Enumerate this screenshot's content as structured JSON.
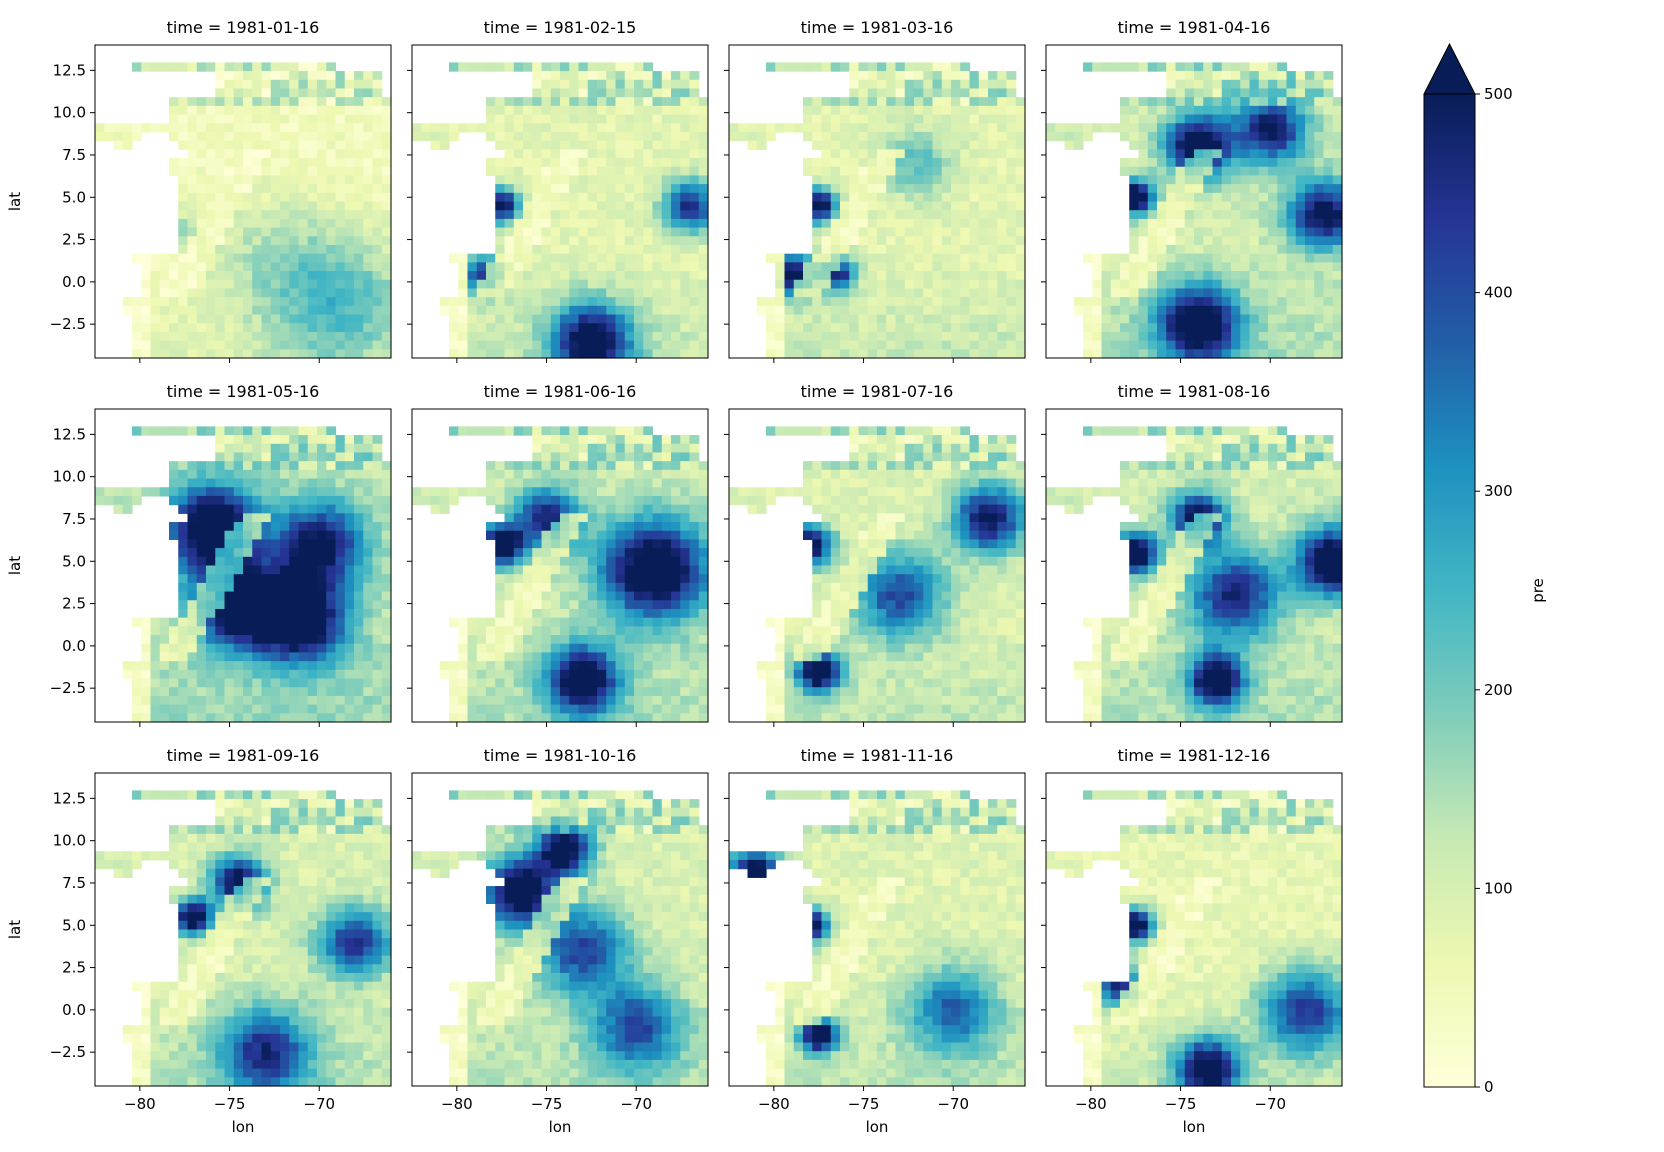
{
  "chart_data": {
    "type": "heatmap",
    "variable": "pre",
    "colormap": "YlGnBu",
    "colormap_stops": [
      "#ffffd9",
      "#edf8b1",
      "#c7e9b4",
      "#7fcdbb",
      "#41b6c4",
      "#1d91c0",
      "#225ea8",
      "#253494",
      "#081d58"
    ],
    "color_range": [
      0,
      500
    ],
    "colorbar": {
      "label": "pre",
      "extend": "max",
      "ticks": [
        0,
        100,
        200,
        300,
        400,
        500
      ],
      "tick_labels": [
        "0",
        "100",
        "200",
        "300",
        "400",
        "500"
      ]
    },
    "xlabel": "lon",
    "ylabel": "lat",
    "xlim": [
      -82.5,
      -66.0
    ],
    "ylim": [
      -4.5,
      14.0
    ],
    "x_ticks": [
      -80,
      -75,
      -70
    ],
    "x_tick_labels": [
      "−80",
      "−75",
      "−70"
    ],
    "y_ticks": [
      -2.5,
      0.0,
      2.5,
      5.0,
      7.5,
      10.0,
      12.5
    ],
    "y_tick_labels": [
      "−2.5",
      "0.0",
      "2.5",
      "5.0",
      "7.5",
      "10.0",
      "12.5"
    ],
    "grid": false,
    "facets": [
      {
        "title": "time = 1981-01-16",
        "level": 0.25,
        "blobs": [
          [
            -73,
            2,
            3.5,
            0.15
          ],
          [
            -77.5,
            3,
            1.2,
            0.2
          ],
          [
            -69,
            -1,
            4,
            0.35
          ]
        ]
      },
      {
        "title": "time = 1981-02-15",
        "level": 0.45,
        "blobs": [
          [
            -77.5,
            4.5,
            1.0,
            0.9
          ],
          [
            -72.5,
            -3.5,
            2.2,
            0.95
          ],
          [
            -67,
            4.5,
            1.5,
            0.75
          ],
          [
            -78.5,
            0.5,
            1.2,
            0.7
          ]
        ]
      },
      {
        "title": "time = 1981-03-16",
        "level": 0.45,
        "blobs": [
          [
            -77.5,
            4.5,
            1.0,
            0.95
          ],
          [
            -79,
            0.5,
            1.3,
            0.9
          ],
          [
            -76.5,
            0.5,
            1.0,
            0.8
          ],
          [
            -72,
            7,
            2.0,
            0.3
          ]
        ]
      },
      {
        "title": "time = 1981-04-16",
        "level": 0.6,
        "blobs": [
          [
            -74,
            -2.5,
            2.2,
            1.0
          ],
          [
            -77.5,
            5,
            1.0,
            1.0
          ],
          [
            -74,
            8,
            1.8,
            1.0
          ],
          [
            -67,
            4,
            2.0,
            0.85
          ],
          [
            -70,
            9,
            2.0,
            0.8
          ]
        ]
      },
      {
        "title": "time = 1981-05-16",
        "level": 0.7,
        "blobs": [
          [
            -76,
            7,
            2.5,
            1.0
          ],
          [
            -74.5,
            2.5,
            2.5,
            1.0
          ],
          [
            -71,
            1.5,
            2.5,
            0.95
          ],
          [
            -70,
            6,
            2.5,
            0.8
          ]
        ]
      },
      {
        "title": "time = 1981-06-16",
        "level": 0.6,
        "blobs": [
          [
            -77.5,
            6,
            1.2,
            1.0
          ],
          [
            -73,
            -2,
            2.0,
            0.95
          ],
          [
            -69,
            4.5,
            3.0,
            1.0
          ],
          [
            -75,
            7.5,
            1.8,
            0.75
          ]
        ]
      },
      {
        "title": "time = 1981-07-16",
        "level": 0.5,
        "blobs": [
          [
            -78,
            6,
            1.2,
            0.95
          ],
          [
            -77.5,
            -1.5,
            1.2,
            1.0
          ],
          [
            -68,
            7.5,
            2.0,
            0.85
          ],
          [
            -73,
            3,
            2.5,
            0.65
          ]
        ]
      },
      {
        "title": "time = 1981-08-16",
        "level": 0.6,
        "blobs": [
          [
            -77.5,
            5.5,
            1.2,
            1.0
          ],
          [
            -73,
            -2,
            1.5,
            1.0
          ],
          [
            -66.5,
            5,
            2.0,
            1.0
          ],
          [
            -74,
            7.5,
            1.5,
            0.9
          ],
          [
            -72,
            3,
            2.5,
            0.75
          ]
        ]
      },
      {
        "title": "time = 1981-09-16",
        "level": 0.55,
        "blobs": [
          [
            -77,
            5.5,
            1.0,
            1.0
          ],
          [
            -74.5,
            7.5,
            1.5,
            0.9
          ],
          [
            -73,
            -2.5,
            2.5,
            0.7
          ],
          [
            -68,
            4,
            2.0,
            0.7
          ]
        ]
      },
      {
        "title": "time = 1981-10-16",
        "level": 0.55,
        "blobs": [
          [
            -76.5,
            7,
            2.0,
            1.0
          ],
          [
            -74,
            9.5,
            1.5,
            0.95
          ],
          [
            -73,
            3.5,
            2.5,
            0.65
          ],
          [
            -70,
            -1,
            2.5,
            0.6
          ]
        ]
      },
      {
        "title": "time = 1981-11-16",
        "level": 0.5,
        "blobs": [
          [
            -78,
            5,
            1.0,
            0.95
          ],
          [
            -77.5,
            -1.5,
            1.0,
            1.0
          ],
          [
            -81,
            8,
            1.5,
            0.95
          ],
          [
            -70,
            0,
            2.5,
            0.55
          ]
        ]
      },
      {
        "title": "time = 1981-12-16",
        "level": 0.4,
        "blobs": [
          [
            -77.5,
            5,
            1.0,
            1.0
          ],
          [
            -73.5,
            -3.5,
            1.8,
            0.95
          ],
          [
            -68,
            0,
            2.5,
            0.7
          ],
          [
            -78.5,
            1.5,
            1.2,
            0.85
          ]
        ]
      }
    ]
  }
}
